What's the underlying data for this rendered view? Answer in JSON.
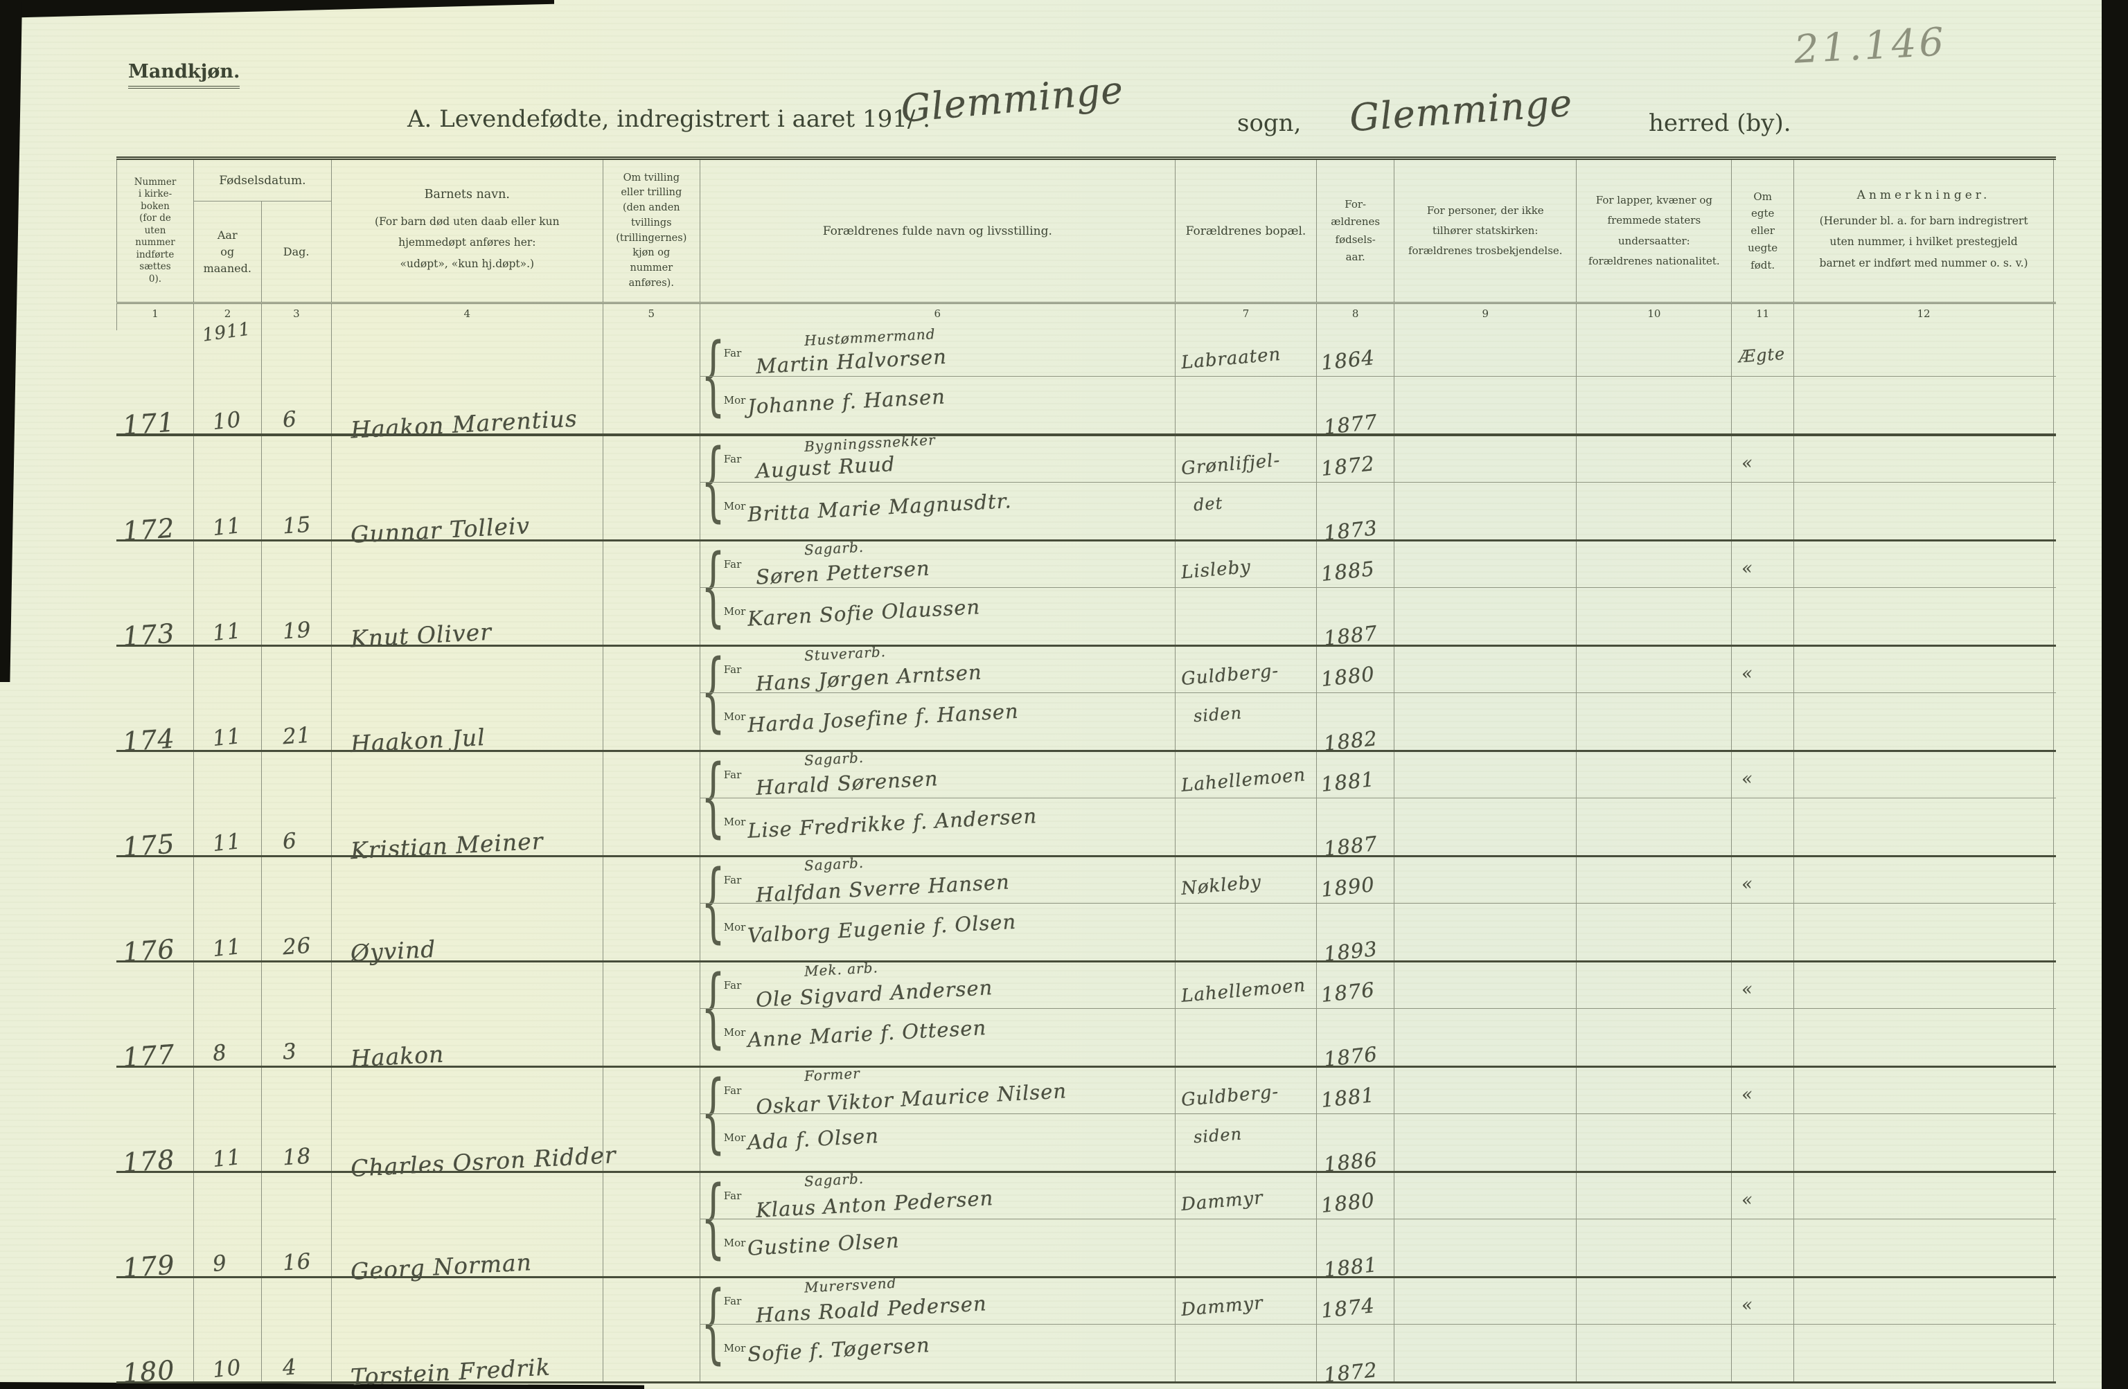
{
  "page": {
    "corner_number": "21.146",
    "section_label": "Mandkjøn.",
    "title": {
      "printed": "A.  Levendefødte, indregistrert i aaret 191/ .",
      "sogn_value": "Glemminge",
      "sogn_label": "sogn,",
      "herred_value": "Glemminge",
      "herred_label": "herred (by)."
    }
  },
  "table": {
    "headers": {
      "col1": "Nummer\ni kirke-\nboken\n(for de\nuten\nnummer\nindførte\nsættes\n0).",
      "fodselsdatum": "Fødselsdatum.",
      "aar_og_maaned": "Aar\nog\nmaaned.",
      "dag": "Dag.",
      "barnets_navn": "Barnets navn.",
      "barnets_navn_note": "(For barn død uten daab eller kun\nhjemmedøpt anføres her:\n«udøpt», «kun hj.døpt».)",
      "tvilling": "Om tvilling\neller trilling\n(den anden\ntvillings\n(trillingernes)\nkjøn og\nnummer\nanføres).",
      "foreldre_navn": "Forældrenes fulde navn og livsstilling.",
      "bopel": "Forældrenes bopæl.",
      "fodselsaar": "For-\nældrenes\nfødsels-\naar.",
      "trosbekjendelse": "For personer, der ikke\ntilhører statskirken:\nforældrenes trosbekjendelse.",
      "nationalitet": "For lapper, kvæner og\nfremmede staters\nundersaatter:\nforældrenes nationalitet.",
      "egte": "Om\negte\neller\nuegte\nfødt.",
      "anmerkninger": "Anmerkninger.",
      "anmerkninger_note": "(Herunder bl. a. for barn indregistrert\nuten nummer, i hvilket prestegjeld\nbarnet er indført med nummer o. s. v.)"
    },
    "column_numbers": [
      "1",
      "2",
      "3",
      "4",
      "5",
      "6",
      "7",
      "8",
      "9",
      "10",
      "11",
      "12"
    ],
    "row_labels": {
      "far": "Far",
      "mor": "Mor"
    },
    "entries": [
      {
        "number": "171",
        "year": "1911",
        "month": "10",
        "day": "6",
        "child": "Haakon Marentius",
        "far_occupation": "Hustømmermand",
        "far_name": "Martin Halvorsen",
        "mor_name": "Johanne f. Hansen",
        "bopel_far": "Labraaten",
        "bopel_mor": "",
        "far_year": "1864",
        "mor_year": "1877",
        "egte": "Ægte"
      },
      {
        "number": "172",
        "year": "",
        "month": "11",
        "day": "15",
        "child": "Gunnar Tolleiv",
        "far_occupation": "Bygningssnekker",
        "far_name": "August Ruud",
        "mor_name": "Britta Marie Magnusdtr.",
        "bopel_far": "Grønlifjel-",
        "bopel_mor": "det",
        "far_year": "1872",
        "mor_year": "1873",
        "egte": "«"
      },
      {
        "number": "173",
        "year": "",
        "month": "11",
        "day": "19",
        "child": "Knut Oliver",
        "far_occupation": "Sagarb.",
        "far_name": "Søren Pettersen",
        "mor_name": "Karen Sofie Olaussen",
        "bopel_far": "Lisleby",
        "bopel_mor": "",
        "far_year": "1885",
        "mor_year": "1887",
        "egte": "«"
      },
      {
        "number": "174",
        "year": "",
        "month": "11",
        "day": "21",
        "child": "Haakon Jul",
        "far_occupation": "Stuverarb.",
        "far_name": "Hans Jørgen Arntsen",
        "mor_name": "Harda Josefine f. Hansen",
        "bopel_far": "Guldberg-",
        "bopel_mor": "siden",
        "far_year": "1880",
        "mor_year": "1882",
        "egte": "«"
      },
      {
        "number": "175",
        "year": "",
        "month": "11",
        "day": "6",
        "child": "Kristian Meiner",
        "far_occupation": "Sagarb.",
        "far_name": "Harald Sørensen",
        "mor_name": "Lise Fredrikke f. Andersen",
        "bopel_far": "Lahellemoen",
        "bopel_mor": "",
        "far_year": "1881",
        "mor_year": "1887",
        "egte": "«"
      },
      {
        "number": "176",
        "year": "",
        "month": "11",
        "day": "26",
        "child": "Øyvind",
        "far_occupation": "Sagarb.",
        "far_name": "Halfdan Sverre Hansen",
        "mor_name": "Valborg Eugenie f. Olsen",
        "bopel_far": "Nøkleby",
        "bopel_mor": "",
        "far_year": "1890",
        "mor_year": "1893",
        "egte": "«"
      },
      {
        "number": "177",
        "year": "",
        "month": "8",
        "day": "3",
        "child": "Haakon",
        "far_occupation": "Mek. arb.",
        "far_name": "Ole Sigvard Andersen",
        "mor_name": "Anne Marie f. Ottesen",
        "bopel_far": "Lahellemoen",
        "bopel_mor": "",
        "far_year": "1876",
        "mor_year": "1876",
        "egte": "«"
      },
      {
        "number": "178",
        "year": "",
        "month": "11",
        "day": "18",
        "child": "Charles Osron Ridder",
        "far_occupation": "Former",
        "far_name": "Oskar Viktor Maurice Nilsen",
        "mor_name": "Ada f. Olsen",
        "bopel_far": "Guldberg-",
        "bopel_mor": "siden",
        "far_year": "1881",
        "mor_year": "1886",
        "egte": "«"
      },
      {
        "number": "179",
        "year": "",
        "month": "9",
        "day": "16",
        "child": "Georg Norman",
        "far_occupation": "Sagarb.",
        "far_name": "Klaus Anton Pedersen",
        "mor_name": "Gustine Olsen",
        "bopel_far": "Dammyr",
        "bopel_mor": "",
        "far_year": "1880",
        "mor_year": "1881",
        "egte": "«"
      },
      {
        "number": "180",
        "year": "",
        "month": "10",
        "day": "4",
        "child": "Torstein Fredrik",
        "far_occupation": "Murersvend",
        "far_name": "Hans Roald Pedersen",
        "mor_name": "Sofie f. Tøgersen",
        "bopel_far": "Dammyr",
        "bopel_mor": "",
        "far_year": "1874",
        "mor_year": "1872",
        "egte": "«"
      }
    ]
  }
}
